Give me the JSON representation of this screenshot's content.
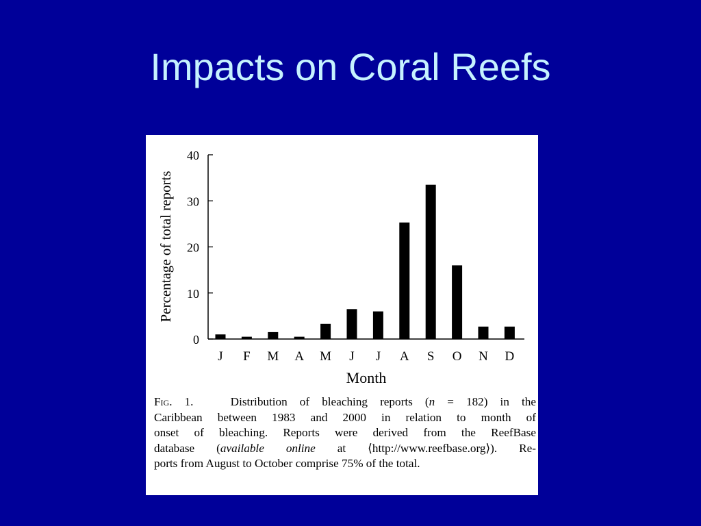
{
  "slide": {
    "title": "Impacts on Coral Reefs",
    "background": "#000099",
    "title_color": "#c6f2ff"
  },
  "chart_data": {
    "type": "bar",
    "categories": [
      "J",
      "F",
      "M",
      "A",
      "M",
      "J",
      "J",
      "A",
      "S",
      "O",
      "N",
      "D"
    ],
    "values": [
      1.0,
      0.5,
      1.5,
      0.5,
      3.3,
      6.5,
      6.0,
      25.3,
      33.5,
      16.0,
      2.7,
      2.7
    ],
    "xlabel": "Month",
    "ylabel": "Percentage of total reports",
    "ylim": [
      0,
      40
    ],
    "yticks": [
      0,
      10,
      20,
      30,
      40
    ],
    "bar_color": "#000000",
    "grid": false
  },
  "caption": {
    "fig_label": "Fig. 1.",
    "line1": "Distribution of bleaching reports (",
    "n_symbol": "n",
    "n_value": " = 182) in the",
    "line2": "Caribbean between 1983 and 2000 in relation to month of",
    "line3": "onset of bleaching. Reports were derived from the ReefBase",
    "line4_start": "database (",
    "line4_italic": "available online",
    "line4_end": " at ⟨http://www.reefbase.org⟩). Re-",
    "line5": "ports from August to October comprise 75% of the total."
  }
}
